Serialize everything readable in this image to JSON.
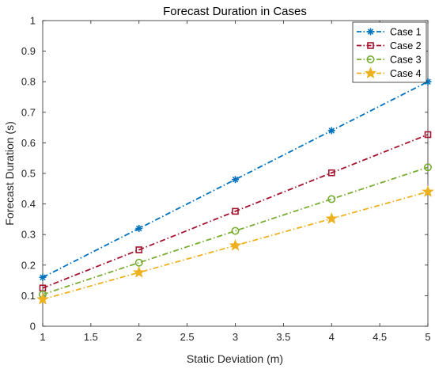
{
  "chart_data": {
    "type": "line",
    "title": "Forecast Duration in Cases",
    "xlabel": "Static Deviation (m)",
    "ylabel": "Forecast Duration (s)",
    "xlim": [
      1,
      5
    ],
    "ylim": [
      0,
      1
    ],
    "xticks": [
      "1",
      "1.5",
      "2",
      "2.5",
      "3",
      "3.5",
      "4",
      "4.5",
      "5"
    ],
    "yticks": [
      "0",
      "0.1",
      "0.2",
      "0.3",
      "0.4",
      "0.5",
      "0.6",
      "0.7",
      "0.8",
      "0.9",
      "1"
    ],
    "grid": false,
    "legend_position": "top-right",
    "x": [
      1,
      2,
      3,
      4,
      5
    ],
    "series": [
      {
        "name": "Case 1",
        "values": [
          0.16,
          0.32,
          0.48,
          0.64,
          0.8
        ],
        "color": "#0072BD",
        "marker": "asterisk",
        "line": "dash-dot"
      },
      {
        "name": "Case 2",
        "values": [
          0.125,
          0.25,
          0.376,
          0.502,
          0.627
        ],
        "color": "#A2142F",
        "marker": "square",
        "line": "dash-dot"
      },
      {
        "name": "Case 3",
        "values": [
          0.104,
          0.208,
          0.312,
          0.416,
          0.52
        ],
        "color": "#77AC30",
        "marker": "circle",
        "line": "dash-dot"
      },
      {
        "name": "Case 4",
        "values": [
          0.088,
          0.176,
          0.264,
          0.352,
          0.44
        ],
        "color": "#EDB120",
        "marker": "star",
        "line": "dash-dot"
      }
    ]
  }
}
